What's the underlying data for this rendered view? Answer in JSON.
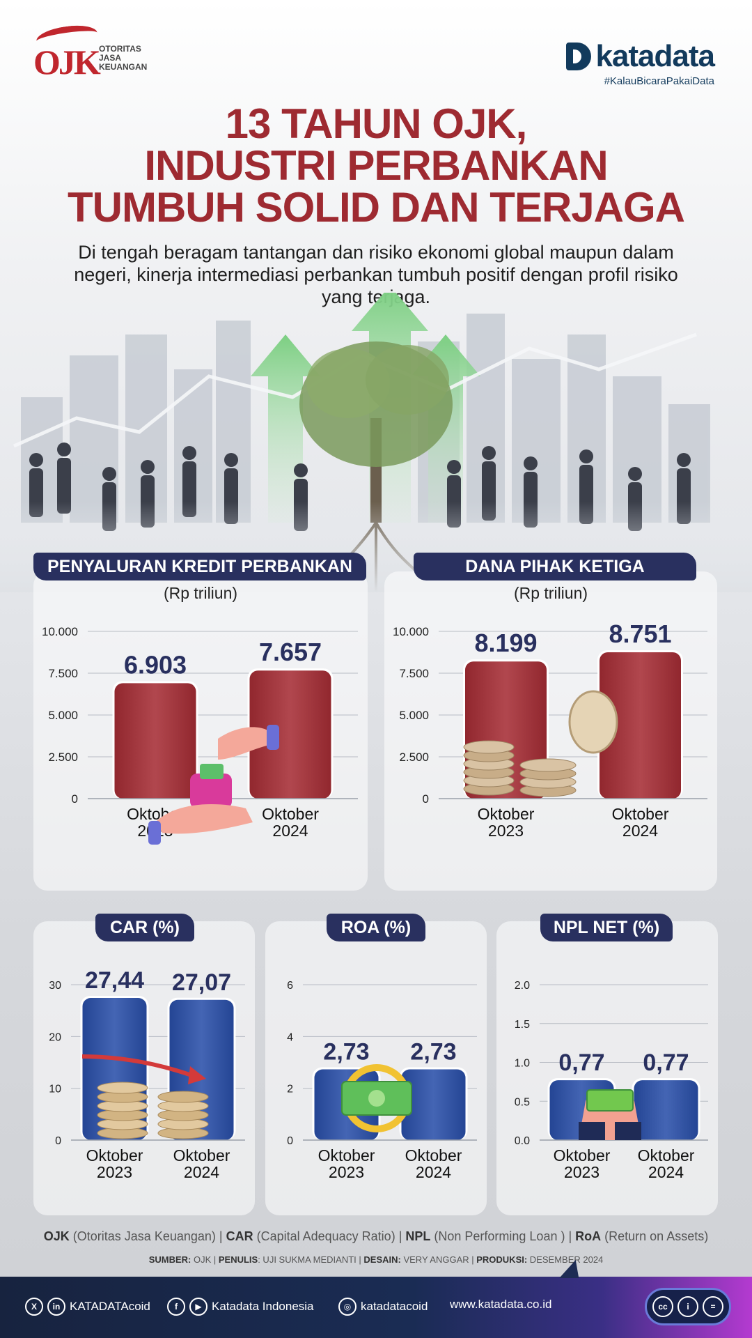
{
  "header": {
    "ojk_logo_text": "OJK",
    "ojk_sub": [
      "OTORITAS",
      "JASA",
      "KEUANGAN"
    ],
    "katadata_name": "katadata",
    "katadata_tag": "#KalauBicaraPakaiData",
    "title_lines": [
      "13 TAHUN OJK,",
      "INDUSTRI PERBANKAN",
      "TUMBUH SOLID DAN TERJAGA"
    ],
    "subtitle": "Di tengah beragam tantangan dan risiko ekonomi global maupun dalam negeri, kinerja intermediasi perbankan tumbuh positif dengan profil risiko yang terjaga."
  },
  "chart_data": [
    {
      "type": "bar",
      "title": "PENYALURAN KREDIT PERBANKAN",
      "unit": "(Rp triliun)",
      "categories": [
        "Oktober 2023",
        "Oktober 2024"
      ],
      "values": [
        6903,
        7657
      ],
      "value_labels": [
        "6.903",
        "7.657"
      ],
      "ylim": [
        0,
        10000
      ],
      "yticks": [
        0,
        2500,
        5000,
        7500,
        10000
      ],
      "ytick_labels": [
        "0",
        "2.500",
        "5.000",
        "7.500",
        "10.000"
      ],
      "grid": true,
      "bar_color": "#9b3138"
    },
    {
      "type": "bar",
      "title": "DANA PIHAK KETIGA",
      "unit": "(Rp triliun)",
      "categories": [
        "Oktober 2023",
        "Oktober 2024"
      ],
      "values": [
        8199,
        8751
      ],
      "value_labels": [
        "8.199",
        "8.751"
      ],
      "ylim": [
        0,
        10000
      ],
      "yticks": [
        0,
        2500,
        5000,
        7500,
        10000
      ],
      "ytick_labels": [
        "0",
        "2.500",
        "5.000",
        "7.500",
        "10.000"
      ],
      "grid": true,
      "bar_color": "#9b3138"
    },
    {
      "type": "bar",
      "title": "CAR (%)",
      "categories": [
        "Oktober 2023",
        "Oktober 2024"
      ],
      "values": [
        27.44,
        27.07
      ],
      "value_labels": [
        "27,44",
        "27,07"
      ],
      "ylim": [
        0,
        30
      ],
      "yticks": [
        0,
        10,
        20,
        30
      ],
      "ytick_labels": [
        "0",
        "10",
        "20",
        "30"
      ],
      "grid": true,
      "bar_color": "#2e4f9e"
    },
    {
      "type": "bar",
      "title": "ROA (%)",
      "categories": [
        "Oktober 2023",
        "Oktober 2024"
      ],
      "values": [
        2.73,
        2.73
      ],
      "value_labels": [
        "2,73",
        "2,73"
      ],
      "ylim": [
        0,
        6
      ],
      "yticks": [
        0,
        2,
        4,
        6
      ],
      "ytick_labels": [
        "0",
        "2",
        "4",
        "6"
      ],
      "grid": true,
      "bar_color": "#2e4f9e"
    },
    {
      "type": "bar",
      "title": "NPL NET (%)",
      "categories": [
        "Oktober 2023",
        "Oktober 2024"
      ],
      "values": [
        0.77,
        0.77
      ],
      "value_labels": [
        "0,77",
        "0,77"
      ],
      "ylim": [
        0,
        2
      ],
      "yticks": [
        0,
        0.5,
        1,
        1.5,
        2
      ],
      "ytick_labels": [
        "0.0",
        "0.5",
        "1.0",
        "1.5",
        "2.0"
      ],
      "grid": true,
      "bar_color": "#2e4f9e"
    }
  ],
  "notes": {
    "glossary": [
      {
        "abbr": "OJK",
        "full": " (Otoritas Jasa Keuangan) | "
      },
      {
        "abbr": "CAR",
        "full": " (Capital Adequacy Ratio) | "
      },
      {
        "abbr": "NPL",
        "full": " (Non Performing Loan ) | "
      },
      {
        "abbr": "RoA",
        "full": " (Return on Assets)"
      }
    ],
    "credits": [
      {
        "k": "SUMBER:",
        "v": " OJK | "
      },
      {
        "k": "PENULIS",
        "v": ": UJI SUKMA MEDIANTI | "
      },
      {
        "k": "DESAIN:",
        "v": " VERY ANGGAR | "
      },
      {
        "k": "PRODUKSI:",
        "v": " DESEMBER 2024"
      }
    ]
  },
  "footer": {
    "twitter_linkedin": "KATADATAcoid",
    "facebook_youtube": "Katadata Indonesia",
    "instagram": "katadatacoid",
    "website": "www.katadata.co.id",
    "icons": [
      "x-icon",
      "linkedin-icon",
      "facebook-icon",
      "youtube-icon",
      "instagram-icon",
      "cc-icon",
      "by-icon",
      "nd-icon"
    ]
  }
}
